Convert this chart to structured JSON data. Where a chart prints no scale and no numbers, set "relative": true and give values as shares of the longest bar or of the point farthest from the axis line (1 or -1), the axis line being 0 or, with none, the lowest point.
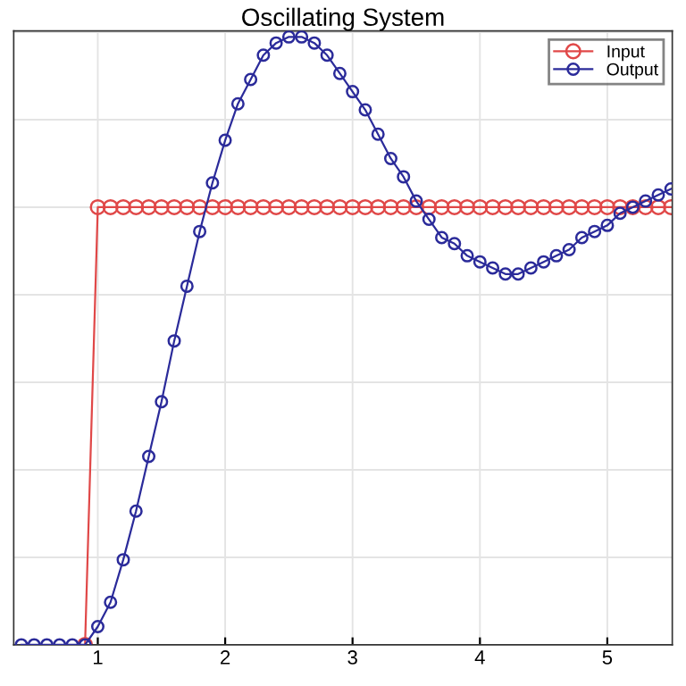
{
  "chart_data": {
    "type": "line",
    "title": "Oscillating System",
    "relative": true,
    "xlim": [
      0.34,
      5.51
    ],
    "xticks": [
      1,
      2,
      3,
      4,
      5
    ],
    "grid": true,
    "legend": "top right",
    "marker": "circle",
    "tick_labels": "x",
    "series": [
      {
        "name": "Input",
        "color": "#e04848",
        "x": [
          0.9,
          1.0,
          1.1,
          1.2,
          1.3,
          1.4,
          1.5,
          1.6,
          1.7,
          1.8,
          1.9,
          2.0,
          2.1,
          2.2,
          2.3,
          2.4,
          2.5,
          2.6,
          2.7,
          2.8,
          2.9,
          3.0,
          3.1,
          3.2,
          3.3,
          3.4,
          3.5,
          3.6,
          3.7,
          3.8,
          3.9,
          4.0,
          4.1,
          4.2,
          4.3,
          4.4,
          4.5,
          4.6,
          4.7,
          4.8,
          4.9,
          5.0,
          5.1,
          5.2,
          5.3,
          5.4,
          5.5
        ],
        "values": [
          0,
          0.72,
          0.72,
          0.72,
          0.72,
          0.72,
          0.72,
          0.72,
          0.72,
          0.72,
          0.72,
          0.72,
          0.72,
          0.72,
          0.72,
          0.72,
          0.72,
          0.72,
          0.72,
          0.72,
          0.72,
          0.72,
          0.72,
          0.72,
          0.72,
          0.72,
          0.72,
          0.72,
          0.72,
          0.72,
          0.72,
          0.72,
          0.72,
          0.72,
          0.72,
          0.72,
          0.72,
          0.72,
          0.72,
          0.72,
          0.72,
          0.72,
          0.72,
          0.72,
          0.72,
          0.72,
          0.72
        ]
      },
      {
        "name": "Output",
        "color": "#2b2b9a",
        "x": [
          0.4,
          0.5,
          0.6,
          0.7,
          0.8,
          0.9,
          1.0,
          1.1,
          1.2,
          1.3,
          1.4,
          1.5,
          1.6,
          1.7,
          1.8,
          1.9,
          2.0,
          2.1,
          2.2,
          2.3,
          2.4,
          2.5,
          2.6,
          2.7,
          2.8,
          2.9,
          3.0,
          3.1,
          3.2,
          3.3,
          3.4,
          3.5,
          3.6,
          3.7,
          3.8,
          3.9,
          4.0,
          4.1,
          4.2,
          4.3,
          4.4,
          4.5,
          4.6,
          4.7,
          4.8,
          4.9,
          5.0,
          5.1,
          5.2,
          5.3,
          5.4,
          5.5
        ],
        "values": [
          0,
          0,
          0,
          0,
          0,
          0,
          0.03,
          0.07,
          0.14,
          0.22,
          0.31,
          0.4,
          0.5,
          0.59,
          0.68,
          0.76,
          0.83,
          0.89,
          0.93,
          0.97,
          0.99,
          1,
          1,
          0.99,
          0.97,
          0.94,
          0.91,
          0.88,
          0.84,
          0.8,
          0.77,
          0.73,
          0.7,
          0.67,
          0.66,
          0.64,
          0.63,
          0.62,
          0.61,
          0.61,
          0.62,
          0.63,
          0.64,
          0.65,
          0.67,
          0.68,
          0.69,
          0.71,
          0.72,
          0.73,
          0.74,
          0.75
        ]
      }
    ]
  }
}
